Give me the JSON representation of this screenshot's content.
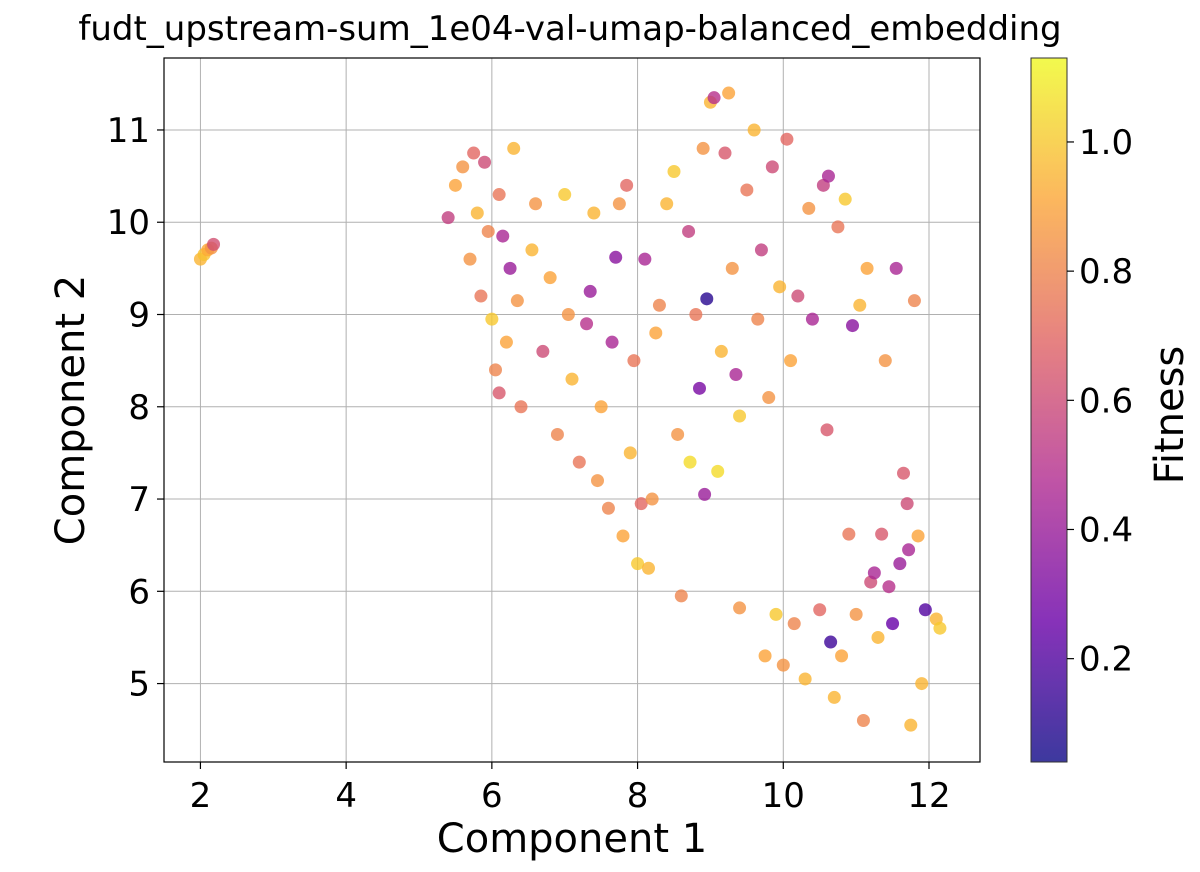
{
  "chart_data": {
    "type": "scatter",
    "title": "fudt_upstream-sum_1e04-val-umap-balanced_embedding",
    "xlabel": "Component 1",
    "ylabel": "Component 2",
    "xlim": [
      1.5,
      12.7
    ],
    "ylim": [
      4.15,
      11.78
    ],
    "xticks": [
      "2",
      "4",
      "6",
      "8",
      "10",
      "12"
    ],
    "yticks": [
      "5",
      "6",
      "7",
      "8",
      "9",
      "10",
      "11"
    ],
    "grid": true,
    "legend": "none",
    "colorbar": {
      "label": "Fitness",
      "range": [
        0.04,
        1.13
      ],
      "ticks": [
        "0.2",
        "0.4",
        "0.6",
        "0.8",
        "1.0"
      ],
      "colormap": "plasma",
      "colors": [
        "#0d0887",
        "#6a00a8",
        "#b12a90",
        "#e16462",
        "#fca636",
        "#f0f921"
      ]
    },
    "point_alpha": 0.8,
    "clusters_description_note": null,
    "points": [
      [
        2.0,
        9.6,
        0.95
      ],
      [
        2.05,
        9.65,
        0.98
      ],
      [
        2.1,
        9.7,
        0.92
      ],
      [
        2.15,
        9.72,
        0.85
      ],
      [
        2.18,
        9.76,
        0.62
      ],
      [
        5.4,
        10.05,
        0.55
      ],
      [
        5.5,
        10.4,
        0.9
      ],
      [
        5.6,
        10.6,
        0.85
      ],
      [
        5.75,
        10.75,
        0.7
      ],
      [
        5.9,
        10.65,
        0.6
      ],
      [
        5.8,
        10.1,
        0.95
      ],
      [
        5.95,
        9.9,
        0.8
      ],
      [
        6.1,
        10.3,
        0.75
      ],
      [
        6.15,
        9.85,
        0.45
      ],
      [
        6.25,
        9.5,
        0.4
      ],
      [
        6.3,
        10.8,
        0.95
      ],
      [
        5.7,
        9.6,
        0.85
      ],
      [
        5.85,
        9.2,
        0.75
      ],
      [
        6.0,
        8.95,
        1.0
      ],
      [
        6.05,
        8.4,
        0.8
      ],
      [
        6.1,
        8.15,
        0.65
      ],
      [
        6.2,
        8.7,
        0.9
      ],
      [
        6.35,
        9.15,
        0.85
      ],
      [
        6.4,
        8.0,
        0.75
      ],
      [
        6.55,
        9.7,
        0.95
      ],
      [
        6.6,
        10.2,
        0.85
      ],
      [
        6.7,
        8.6,
        0.6
      ],
      [
        6.8,
        9.4,
        0.9
      ],
      [
        6.9,
        7.7,
        0.8
      ],
      [
        7.0,
        10.3,
        1.0
      ],
      [
        7.05,
        9.0,
        0.85
      ],
      [
        7.1,
        8.3,
        0.95
      ],
      [
        7.2,
        7.4,
        0.75
      ],
      [
        7.3,
        8.9,
        0.5
      ],
      [
        7.35,
        9.25,
        0.4
      ],
      [
        7.4,
        10.1,
        0.95
      ],
      [
        7.45,
        7.2,
        0.85
      ],
      [
        7.5,
        8.0,
        0.9
      ],
      [
        7.6,
        6.9,
        0.8
      ],
      [
        7.65,
        8.7,
        0.45
      ],
      [
        7.7,
        9.62,
        0.35
      ],
      [
        7.75,
        10.2,
        0.85
      ],
      [
        7.8,
        6.6,
        0.9
      ],
      [
        7.85,
        10.4,
        0.7
      ],
      [
        7.9,
        7.5,
        0.95
      ],
      [
        7.95,
        8.5,
        0.75
      ],
      [
        8.0,
        6.3,
        1.0
      ],
      [
        8.05,
        6.95,
        0.7
      ],
      [
        8.1,
        9.6,
        0.45
      ],
      [
        8.15,
        6.25,
        0.95
      ],
      [
        8.2,
        7.0,
        0.85
      ],
      [
        8.25,
        8.8,
        0.9
      ],
      [
        8.3,
        9.1,
        0.8
      ],
      [
        8.4,
        10.2,
        0.95
      ],
      [
        8.5,
        10.55,
        1.0
      ],
      [
        8.55,
        7.7,
        0.85
      ],
      [
        8.6,
        5.95,
        0.8
      ],
      [
        8.7,
        9.9,
        0.55
      ],
      [
        8.72,
        7.4,
        1.05
      ],
      [
        8.8,
        9.0,
        0.75
      ],
      [
        8.85,
        8.2,
        0.3
      ],
      [
        8.9,
        10.8,
        0.85
      ],
      [
        8.95,
        9.17,
        0.1
      ],
      [
        8.92,
        7.05,
        0.4
      ],
      [
        9.0,
        11.3,
        0.95
      ],
      [
        9.05,
        11.35,
        0.5
      ],
      [
        9.1,
        7.3,
        1.05
      ],
      [
        9.15,
        8.6,
        0.95
      ],
      [
        9.2,
        10.75,
        0.65
      ],
      [
        9.25,
        11.4,
        0.9
      ],
      [
        9.3,
        9.5,
        0.85
      ],
      [
        9.35,
        8.35,
        0.45
      ],
      [
        9.4,
        7.9,
        1.0
      ],
      [
        9.4,
        5.82,
        0.85
      ],
      [
        9.5,
        10.35,
        0.75
      ],
      [
        9.6,
        11.0,
        0.95
      ],
      [
        9.65,
        8.95,
        0.8
      ],
      [
        9.7,
        9.7,
        0.55
      ],
      [
        9.75,
        5.3,
        0.9
      ],
      [
        9.8,
        8.1,
        0.85
      ],
      [
        9.85,
        10.6,
        0.6
      ],
      [
        9.9,
        5.75,
        1.0
      ],
      [
        9.95,
        9.3,
        0.95
      ],
      [
        10.0,
        5.2,
        0.85
      ],
      [
        10.05,
        10.9,
        0.7
      ],
      [
        10.1,
        8.5,
        0.9
      ],
      [
        10.15,
        5.65,
        0.8
      ],
      [
        10.2,
        9.2,
        0.6
      ],
      [
        10.3,
        5.05,
        0.95
      ],
      [
        10.35,
        10.15,
        0.85
      ],
      [
        10.4,
        8.95,
        0.45
      ],
      [
        10.5,
        5.8,
        0.7
      ],
      [
        10.55,
        10.4,
        0.55
      ],
      [
        10.6,
        7.75,
        0.65
      ],
      [
        10.62,
        10.5,
        0.45
      ],
      [
        10.65,
        5.45,
        0.15
      ],
      [
        10.7,
        4.85,
        0.95
      ],
      [
        10.75,
        9.95,
        0.75
      ],
      [
        10.8,
        5.3,
        0.9
      ],
      [
        10.85,
        10.25,
        1.0
      ],
      [
        10.9,
        6.62,
        0.75
      ],
      [
        10.95,
        8.88,
        0.35
      ],
      [
        11.0,
        5.75,
        0.85
      ],
      [
        11.05,
        9.1,
        0.95
      ],
      [
        11.1,
        4.6,
        0.8
      ],
      [
        11.15,
        9.5,
        0.9
      ],
      [
        11.2,
        6.1,
        0.6
      ],
      [
        11.25,
        6.2,
        0.45
      ],
      [
        11.3,
        5.5,
        0.95
      ],
      [
        11.35,
        6.62,
        0.65
      ],
      [
        11.4,
        8.5,
        0.85
      ],
      [
        11.45,
        6.05,
        0.5
      ],
      [
        11.5,
        5.65,
        0.25
      ],
      [
        11.55,
        9.5,
        0.45
      ],
      [
        11.6,
        6.3,
        0.4
      ],
      [
        11.65,
        7.28,
        0.65
      ],
      [
        11.7,
        6.95,
        0.6
      ],
      [
        11.72,
        6.45,
        0.45
      ],
      [
        11.75,
        4.55,
        0.95
      ],
      [
        11.8,
        9.15,
        0.8
      ],
      [
        11.85,
        6.6,
        0.9
      ],
      [
        11.9,
        5.0,
        0.95
      ],
      [
        11.95,
        5.8,
        0.2
      ],
      [
        12.1,
        5.7,
        0.95
      ],
      [
        12.15,
        5.6,
        1.0
      ]
    ]
  }
}
